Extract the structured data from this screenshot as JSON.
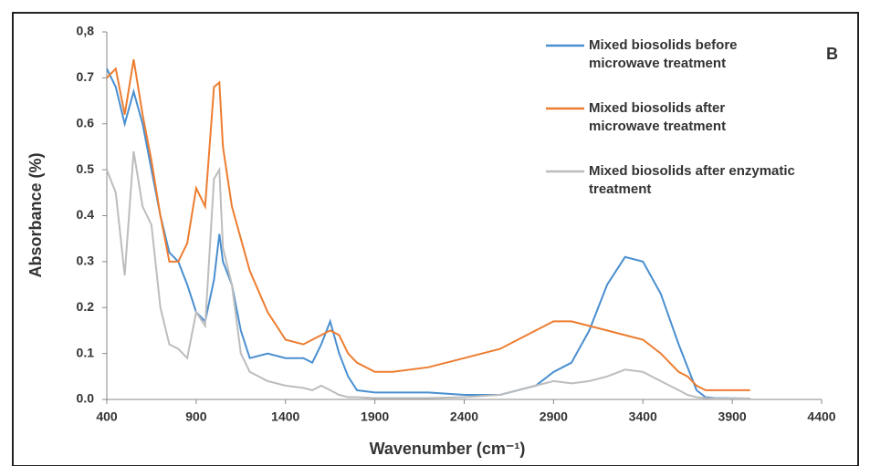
{
  "chart_data": {
    "type": "line",
    "annotations": [
      "B"
    ],
    "xlabel": "Wavenumber (cm⁻¹)",
    "ylabel": "Absorbance (%)",
    "x": [
      400,
      450,
      500,
      550,
      600,
      650,
      700,
      750,
      800,
      850,
      900,
      950,
      1000,
      1030,
      1050,
      1100,
      1150,
      1200,
      1300,
      1400,
      1500,
      1550,
      1600,
      1650,
      1700,
      1750,
      1800,
      1900,
      2000,
      2200,
      2400,
      2600,
      2800,
      2900,
      3000,
      3100,
      3200,
      3300,
      3400,
      3500,
      3600,
      3650,
      3700,
      3750,
      3800,
      4000
    ],
    "series": [
      {
        "name": "Mixed biosolids before microwave treatment",
        "color": "#4a8fd0",
        "values": [
          0.72,
          0.68,
          0.6,
          0.67,
          0.6,
          0.5,
          0.4,
          0.32,
          0.3,
          0.25,
          0.19,
          0.17,
          0.26,
          0.36,
          0.3,
          0.25,
          0.15,
          0.09,
          0.1,
          0.09,
          0.09,
          0.08,
          0.12,
          0.17,
          0.1,
          0.05,
          0.02,
          0.015,
          0.015,
          0.015,
          0.01,
          0.01,
          0.03,
          0.06,
          0.08,
          0.15,
          0.25,
          0.31,
          0.3,
          0.23,
          0.12,
          0.07,
          0.02,
          0.005,
          0.003,
          0.002
        ]
      },
      {
        "name": "Mixed biosolids after microwave treatment",
        "color": "#ed7d31",
        "values": [
          0.7,
          0.72,
          0.62,
          0.74,
          0.62,
          0.52,
          0.4,
          0.3,
          0.3,
          0.34,
          0.46,
          0.42,
          0.68,
          0.69,
          0.55,
          0.42,
          0.35,
          0.28,
          0.19,
          0.13,
          0.12,
          0.13,
          0.14,
          0.15,
          0.14,
          0.1,
          0.08,
          0.06,
          0.06,
          0.07,
          0.09,
          0.11,
          0.15,
          0.17,
          0.17,
          0.16,
          0.15,
          0.14,
          0.13,
          0.1,
          0.06,
          0.05,
          0.03,
          0.02,
          0.02,
          0.02
        ]
      },
      {
        "name": "Mixed biosolids after enzymatic treatment",
        "color": "#bdbdbd",
        "values": [
          0.5,
          0.45,
          0.27,
          0.54,
          0.42,
          0.38,
          0.2,
          0.12,
          0.11,
          0.09,
          0.19,
          0.16,
          0.48,
          0.5,
          0.33,
          0.25,
          0.1,
          0.06,
          0.04,
          0.03,
          0.025,
          0.02,
          0.03,
          0.02,
          0.01,
          0.005,
          0.005,
          0.003,
          0.003,
          0.003,
          0.005,
          0.01,
          0.03,
          0.04,
          0.035,
          0.04,
          0.05,
          0.065,
          0.06,
          0.04,
          0.02,
          0.01,
          0.005,
          0.003,
          0.002,
          0.002
        ]
      }
    ],
    "xlim": [
      400,
      4400
    ],
    "xticks": [
      400,
      900,
      1400,
      1900,
      2400,
      2900,
      3400,
      3900,
      4400
    ],
    "ylim": [
      0,
      0.8
    ],
    "yticks": [
      {
        "value": 0,
        "label": "0.0"
      },
      0.1,
      0.2,
      0.3,
      0.4,
      0.5,
      0.6,
      0.7,
      {
        "value": 0.8,
        "label": "0,8"
      }
    ],
    "grid": false,
    "legend": "upper right"
  }
}
